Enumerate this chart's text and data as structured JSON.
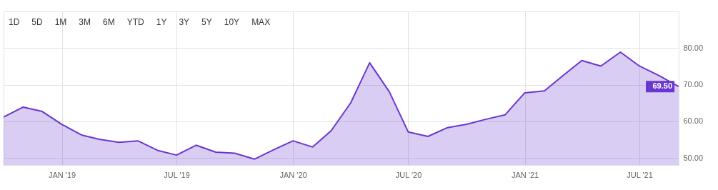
{
  "chart_data": {
    "type": "area",
    "x": [
      "2018-10",
      "2018-11",
      "2018-12",
      "2019-01",
      "2019-02",
      "2019-03",
      "2019-04",
      "2019-05",
      "2019-06",
      "2019-07",
      "2019-08",
      "2019-09",
      "2019-10",
      "2019-11",
      "2019-12",
      "2020-01",
      "2020-02",
      "2020-03",
      "2020-04",
      "2020-05",
      "2020-06",
      "2020-07",
      "2020-08",
      "2020-09",
      "2020-10",
      "2020-11",
      "2020-12",
      "2021-01",
      "2021-02",
      "2021-03",
      "2021-04",
      "2021-05",
      "2021-06",
      "2021-07",
      "2021-08",
      "2021-09"
    ],
    "series": [
      {
        "color": "#6a36d0",
        "values": [
          61.2,
          63.9,
          62.7,
          59.2,
          56.3,
          55.1,
          54.3,
          54.7,
          52.1,
          50.8,
          53.5,
          51.6,
          51.3,
          49.7,
          52.2,
          54.7,
          53.0,
          57.4,
          65.0,
          76.0,
          68.1,
          57.1,
          55.9,
          58.3,
          59.2,
          60.6,
          61.8,
          67.8,
          68.3,
          72.3,
          76.6,
          75.1,
          78.9,
          75.1,
          72.5,
          69.5
        ]
      }
    ],
    "xlim": [
      "2018-10",
      "2021-09"
    ],
    "xticks": [
      {
        "value": "2019-01",
        "label": "JAN '19"
      },
      {
        "value": "2019-07",
        "label": "JUL '19"
      },
      {
        "value": "2020-01",
        "label": "JAN '20"
      },
      {
        "value": "2020-07",
        "label": "JUL '20"
      },
      {
        "value": "2021-01",
        "label": "JAN '21"
      },
      {
        "value": "2021-07",
        "label": "JUL '21"
      }
    ],
    "ylim": [
      48.1,
      90
    ],
    "yticks": [
      {
        "value": 50,
        "label": "50.00"
      },
      {
        "value": 60,
        "label": "60.00"
      },
      {
        "value": 70,
        "label": "70.00"
      },
      {
        "value": 80,
        "label": "80.00"
      }
    ],
    "grid": true,
    "annotations": [
      "1D",
      "5D",
      "1M",
      "3M",
      "6M",
      "YTD",
      "1Y",
      "3Y",
      "5Y",
      "10Y",
      "MAX",
      {
        "text": "69.50",
        "x": "2021-09",
        "y": 69.5
      }
    ]
  }
}
